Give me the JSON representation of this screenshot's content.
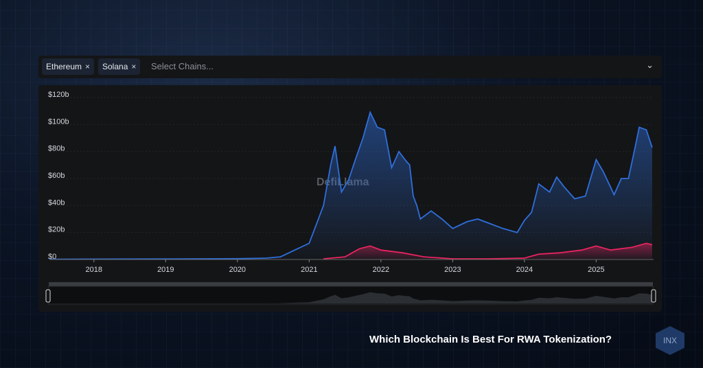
{
  "selector": {
    "chips": [
      {
        "label": "Ethereum"
      },
      {
        "label": "Solana"
      }
    ],
    "remove_icon": "×",
    "placeholder": "Select Chains...",
    "chevron": "⌄"
  },
  "watermark": "DefiLlama",
  "caption": "Which Blockchain Is Best For RWA Tokenization?",
  "logo": "INX",
  "colors": {
    "ethereum": "#2f6fdc",
    "solana": "#e8245f"
  },
  "chart_data": {
    "type": "area",
    "xlim": [
      2017.38,
      2025.8
    ],
    "ylim": [
      0,
      120
    ],
    "y_ticks": [
      "$0",
      "$20b",
      "$40b",
      "$60b",
      "$80b",
      "$100b",
      "$120b"
    ],
    "x_ticks": [
      "2018",
      "2019",
      "2020",
      "2021",
      "2022",
      "2023",
      "2024",
      "2025"
    ],
    "grid": true,
    "series": [
      {
        "name": "Ethereum",
        "x": [
          2017.38,
          2018,
          2019,
          2020,
          2020.4,
          2020.6,
          2020.8,
          2021.0,
          2021.1,
          2021.2,
          2021.3,
          2021.36,
          2021.45,
          2021.55,
          2021.65,
          2021.75,
          2021.85,
          2021.95,
          2022.05,
          2022.15,
          2022.25,
          2022.35,
          2022.4,
          2022.45,
          2022.5,
          2022.55,
          2022.7,
          2022.85,
          2023.0,
          2023.2,
          2023.35,
          2023.5,
          2023.7,
          2023.9,
          2024.0,
          2024.1,
          2024.2,
          2024.35,
          2024.45,
          2024.55,
          2024.7,
          2024.85,
          2025.0,
          2025.1,
          2025.25,
          2025.35,
          2025.45,
          2025.55,
          2025.6,
          2025.7,
          2025.78
        ],
        "y": [
          0.2,
          0.3,
          0.4,
          0.6,
          1,
          2,
          7,
          12,
          26,
          40,
          70,
          84,
          50,
          59,
          75,
          90,
          109,
          98,
          96,
          68,
          80,
          73,
          70,
          47,
          40,
          30,
          36,
          30,
          23,
          28,
          30,
          27,
          23,
          20,
          29,
          35,
          56,
          50,
          61,
          54,
          45,
          47,
          74,
          65,
          48,
          60,
          60,
          85,
          98,
          96,
          83
        ]
      },
      {
        "name": "Solana",
        "x": [
          2021.2,
          2021.5,
          2021.7,
          2021.85,
          2022.0,
          2022.3,
          2022.6,
          2023.0,
          2023.5,
          2024.0,
          2024.2,
          2024.5,
          2024.8,
          2025.0,
          2025.2,
          2025.5,
          2025.7,
          2025.78
        ],
        "y": [
          0.5,
          2,
          8,
          10,
          7,
          5,
          2,
          0.5,
          0.5,
          1,
          4,
          5,
          7,
          10,
          7,
          9,
          12,
          11
        ]
      }
    ]
  }
}
